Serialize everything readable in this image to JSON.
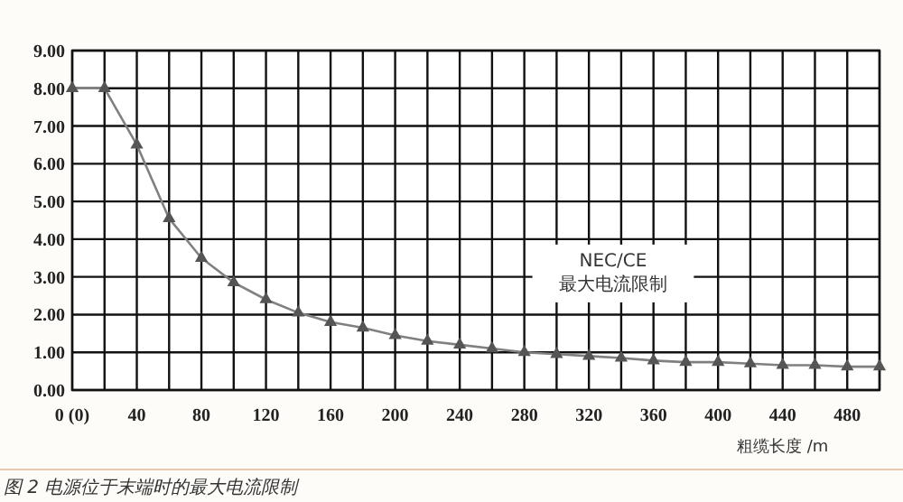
{
  "chart_data": {
    "type": "line",
    "title": "图 2 电源位于末端时的最大电流限制",
    "xlabel": "粗缆长度 /m",
    "annotations": [
      "NEC/CE\n最大电流限制"
    ],
    "x": [
      0,
      20,
      40,
      60,
      80,
      100,
      120,
      140,
      160,
      180,
      200,
      220,
      240,
      260,
      280,
      300,
      320,
      340,
      360,
      380,
      400,
      420,
      440,
      460,
      480,
      500
    ],
    "series": [
      {
        "color": "#808080",
        "values": [
          8.0,
          8.0,
          6.5,
          4.55,
          3.5,
          2.85,
          2.4,
          2.05,
          1.8,
          1.65,
          1.45,
          1.3,
          1.2,
          1.1,
          1.0,
          0.95,
          0.9,
          0.85,
          0.78,
          0.74,
          0.74,
          0.7,
          0.66,
          0.66,
          0.62,
          0.62
        ]
      }
    ],
    "xlim": [
      0,
      500
    ],
    "xticks": [
      {
        "value": 0,
        "label": "0 (0)"
      },
      {
        "value": 20,
        "label": null
      },
      40,
      {
        "value": 60,
        "label": null
      },
      80,
      {
        "value": 100,
        "label": null
      },
      120,
      {
        "value": 140,
        "label": null
      },
      160,
      {
        "value": 180,
        "label": null
      },
      200,
      {
        "value": 220,
        "label": null
      },
      240,
      {
        "value": 260,
        "label": null
      },
      280,
      {
        "value": 300,
        "label": null
      },
      320,
      {
        "value": 340,
        "label": null
      },
      360,
      {
        "value": 380,
        "label": null
      },
      400,
      {
        "value": 420,
        "label": null
      },
      440,
      {
        "value": 460,
        "label": null
      },
      480,
      {
        "value": 500,
        "label": null
      }
    ],
    "ylim": [
      0,
      9
    ],
    "yticks": [
      {
        "value": 0,
        "label": "0.00"
      },
      {
        "value": 1,
        "label": "1.00"
      },
      {
        "value": 2,
        "label": "2.00"
      },
      {
        "value": 3,
        "label": "3.00"
      },
      {
        "value": 4,
        "label": "4.00"
      },
      {
        "value": 5,
        "label": "5.00"
      },
      {
        "value": 6,
        "label": "6.00"
      },
      {
        "value": 7,
        "label": "7.00"
      },
      {
        "value": 8,
        "label": "8.00"
      },
      {
        "value": 9,
        "label": "9.00"
      }
    ],
    "grid": true,
    "marker": "triangle",
    "line_style": "solid"
  }
}
